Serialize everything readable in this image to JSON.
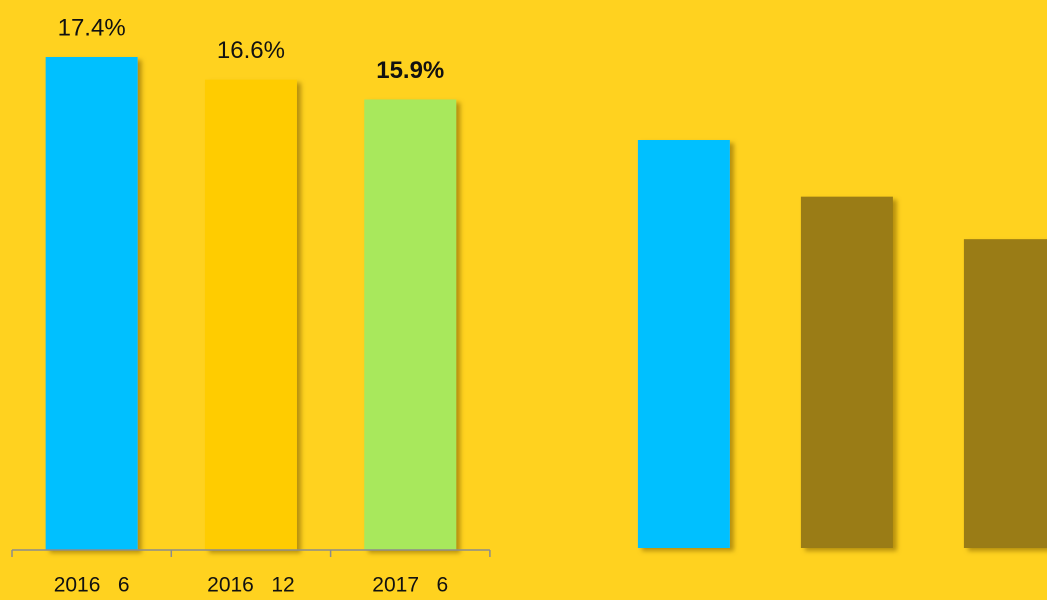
{
  "chart_data": [
    {
      "type": "bar",
      "categories": [
        "2016   6",
        "2016   12",
        "2017   6"
      ],
      "values": [
        17.4,
        16.6,
        15.9
      ],
      "value_labels": [
        "17.4%",
        "16.6%",
        "15.9%"
      ],
      "colors": [
        "#00c0ff",
        "#ffcc00",
        "#a8e85c"
      ],
      "bold_labels": [
        false,
        false,
        true
      ],
      "ylim": [
        0,
        18
      ]
    },
    {
      "type": "bar",
      "values": [
        14.4,
        12.4,
        10.9
      ],
      "colors": [
        "#00c0ff",
        "#9a7c14",
        "#9a7c14"
      ],
      "ylim": [
        0,
        18
      ]
    }
  ]
}
